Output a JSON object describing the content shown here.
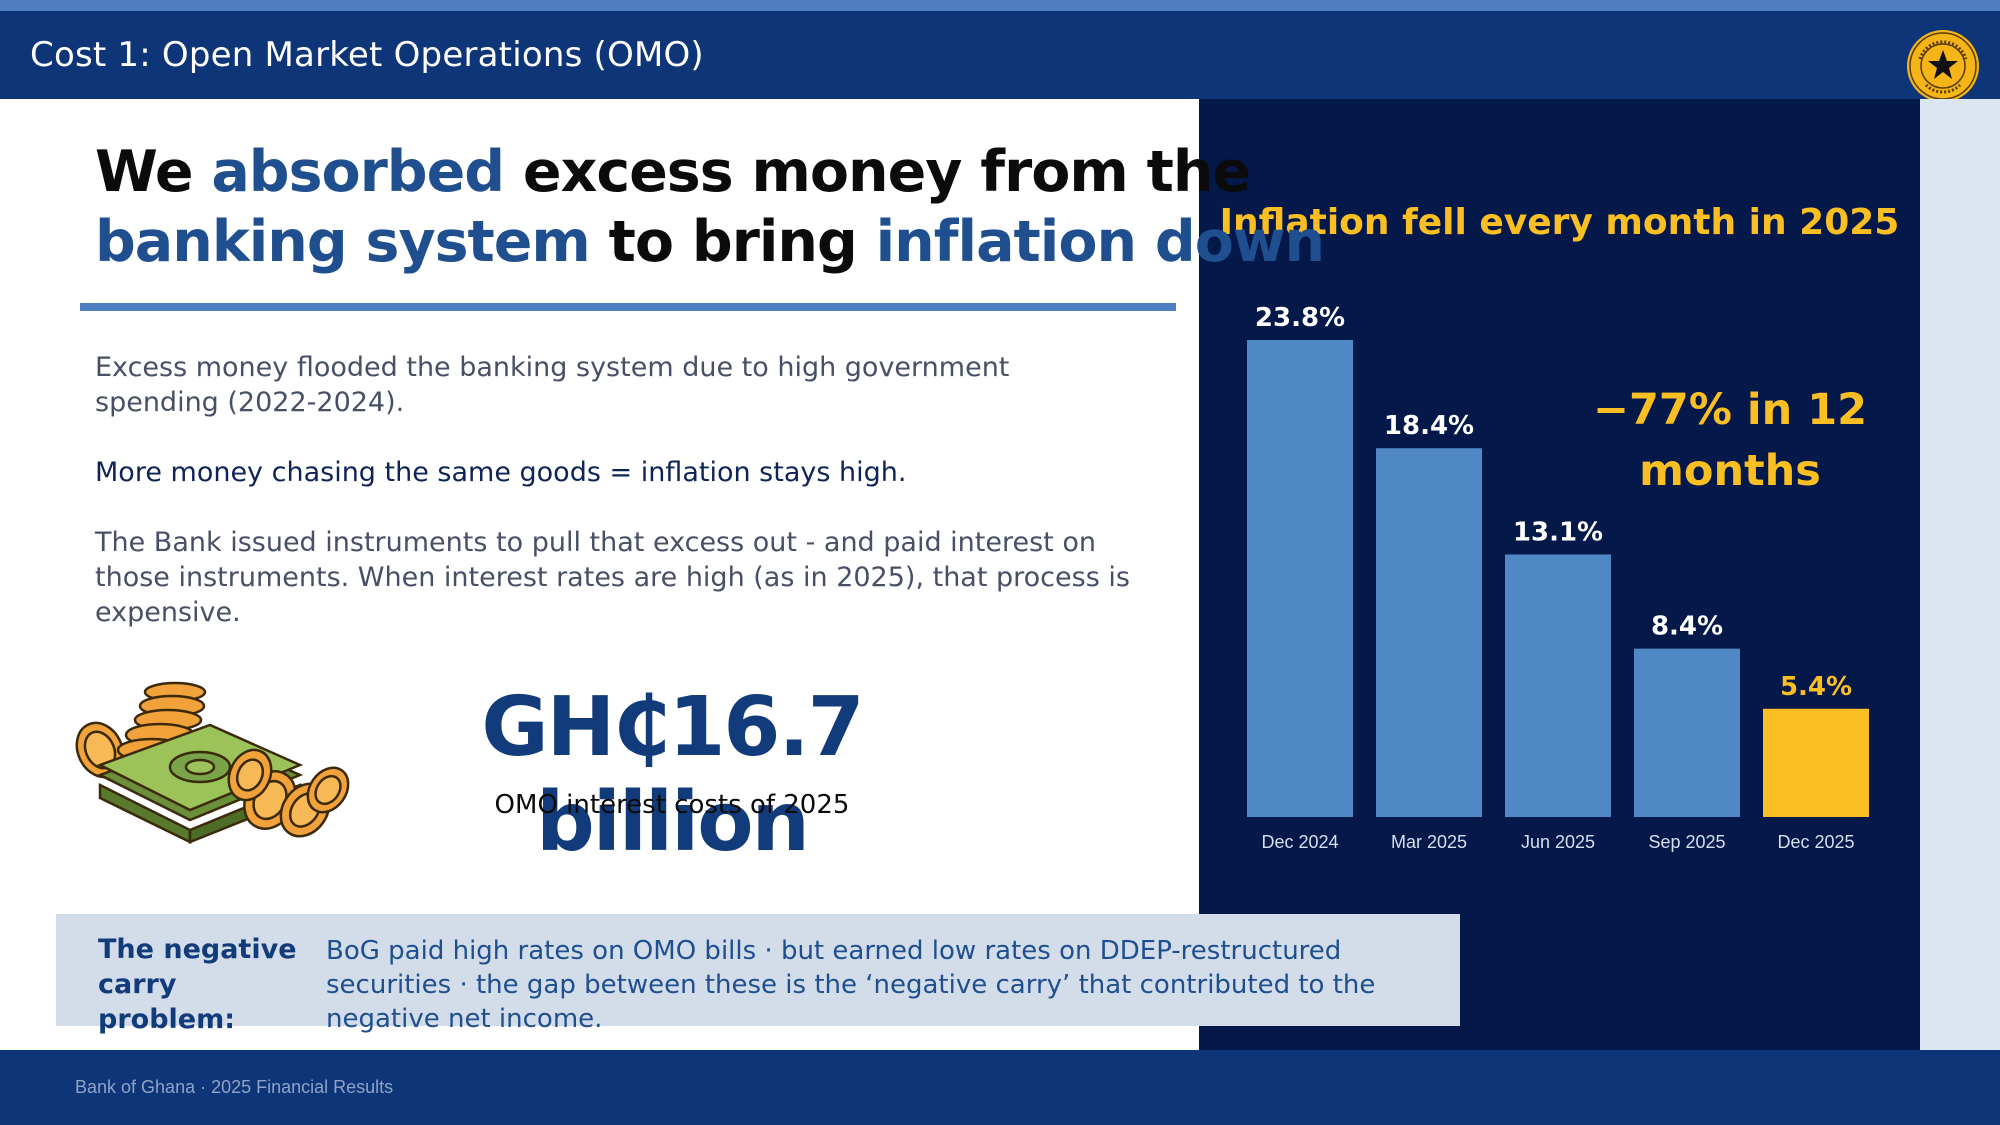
{
  "header": {
    "title": "Cost 1: Open Market Operations (OMO)"
  },
  "headline": {
    "l1_a": "We ",
    "l1_b": "absorbed",
    "l1_c": " excess money from the",
    "l2_a": "banking system",
    "l2_b": " to bring ",
    "l2_c": "inflation down"
  },
  "body": {
    "p1": "Excess money flooded the banking system due to high government spending (2022-2024).",
    "p2": "More money chasing the same goods = inflation stays high.",
    "p3": "The Bank issued instruments to pull that excess out - and paid interest on those instruments. When interest rates are high (as in 2025), that process is expensive."
  },
  "highlight": {
    "amount": "GH₵16.7 billion",
    "caption": "OMO interest costs of 2025"
  },
  "callout": {
    "label": "The negative carry problem:",
    "text": "BoG paid high rates on OMO bills · but earned low rates on DDEP-restructured securities · the gap between these is the ‘negative carry’ that contributed to the negative net income."
  },
  "footer": {
    "text": "Bank of Ghana · 2025 Financial Results"
  },
  "colors": {
    "bar": "#4f88c4",
    "bar_highlight": "#fbbf24",
    "label": "#ffffff",
    "label_highlight": "#fbbf24",
    "tick": "#d6dfee"
  },
  "chart_data": {
    "type": "bar",
    "title": "Inflation fell every month in 2025",
    "categories": [
      "Dec 2024",
      "Mar 2025",
      "Jun 2025",
      "Sep 2025",
      "Dec 2025"
    ],
    "values": [
      23.8,
      18.4,
      13.1,
      8.4,
      5.4
    ],
    "data_labels": [
      "23.8%",
      "18.4%",
      "13.1%",
      "8.4%",
      "5.4%"
    ],
    "highlight_index": 4,
    "annotation": "−77% in 12 months",
    "ylim": [
      0,
      23.8
    ],
    "grid": false,
    "legend": "none"
  }
}
